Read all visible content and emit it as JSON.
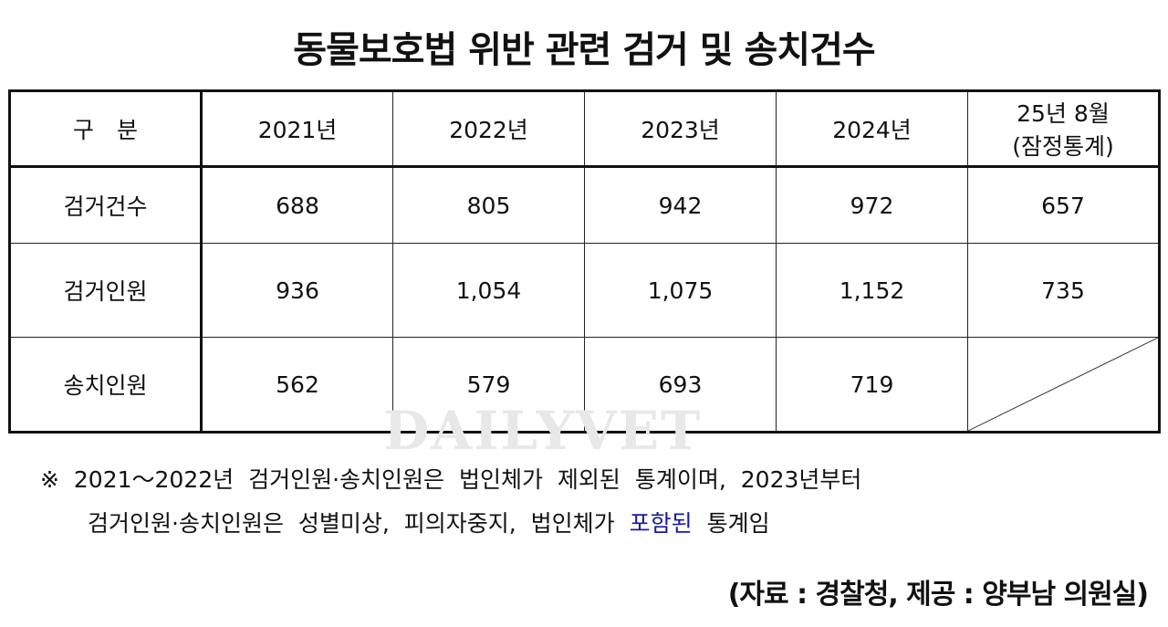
{
  "title": "동물보호법 위반 관련 검거 및 송치건수",
  "table": {
    "headers": [
      "구　분",
      "2021년",
      "2022년",
      "2023년",
      "2024년"
    ],
    "last_header": {
      "line1": "25년 8월",
      "line2": "(잠정통계)"
    },
    "rows": [
      {
        "label": "검거건수",
        "values": [
          "688",
          "805",
          "942",
          "972",
          "657"
        ]
      },
      {
        "label": "검거인원",
        "values": [
          "936",
          "1,054",
          "1,075",
          "1,152",
          "735"
        ]
      },
      {
        "label": "송치인원",
        "values": [
          "562",
          "579",
          "693",
          "719"
        ]
      }
    ]
  },
  "watermark": "DAILYVET",
  "note": {
    "line1": "※ 2021～2022년 검거인원·송치인원은 법인체가 제외된 통계이며, 2023년부터",
    "line2_a": "검거인원·송치인원은 성별미상, 피의자중지, 법인체가 ",
    "line2_highlight": "포함된",
    "line2_b": " 통계임",
    "highlight_color": "#1a1a9c"
  },
  "source": "(자료 : 경찰청, 제공 : 양부남 의원실)"
}
